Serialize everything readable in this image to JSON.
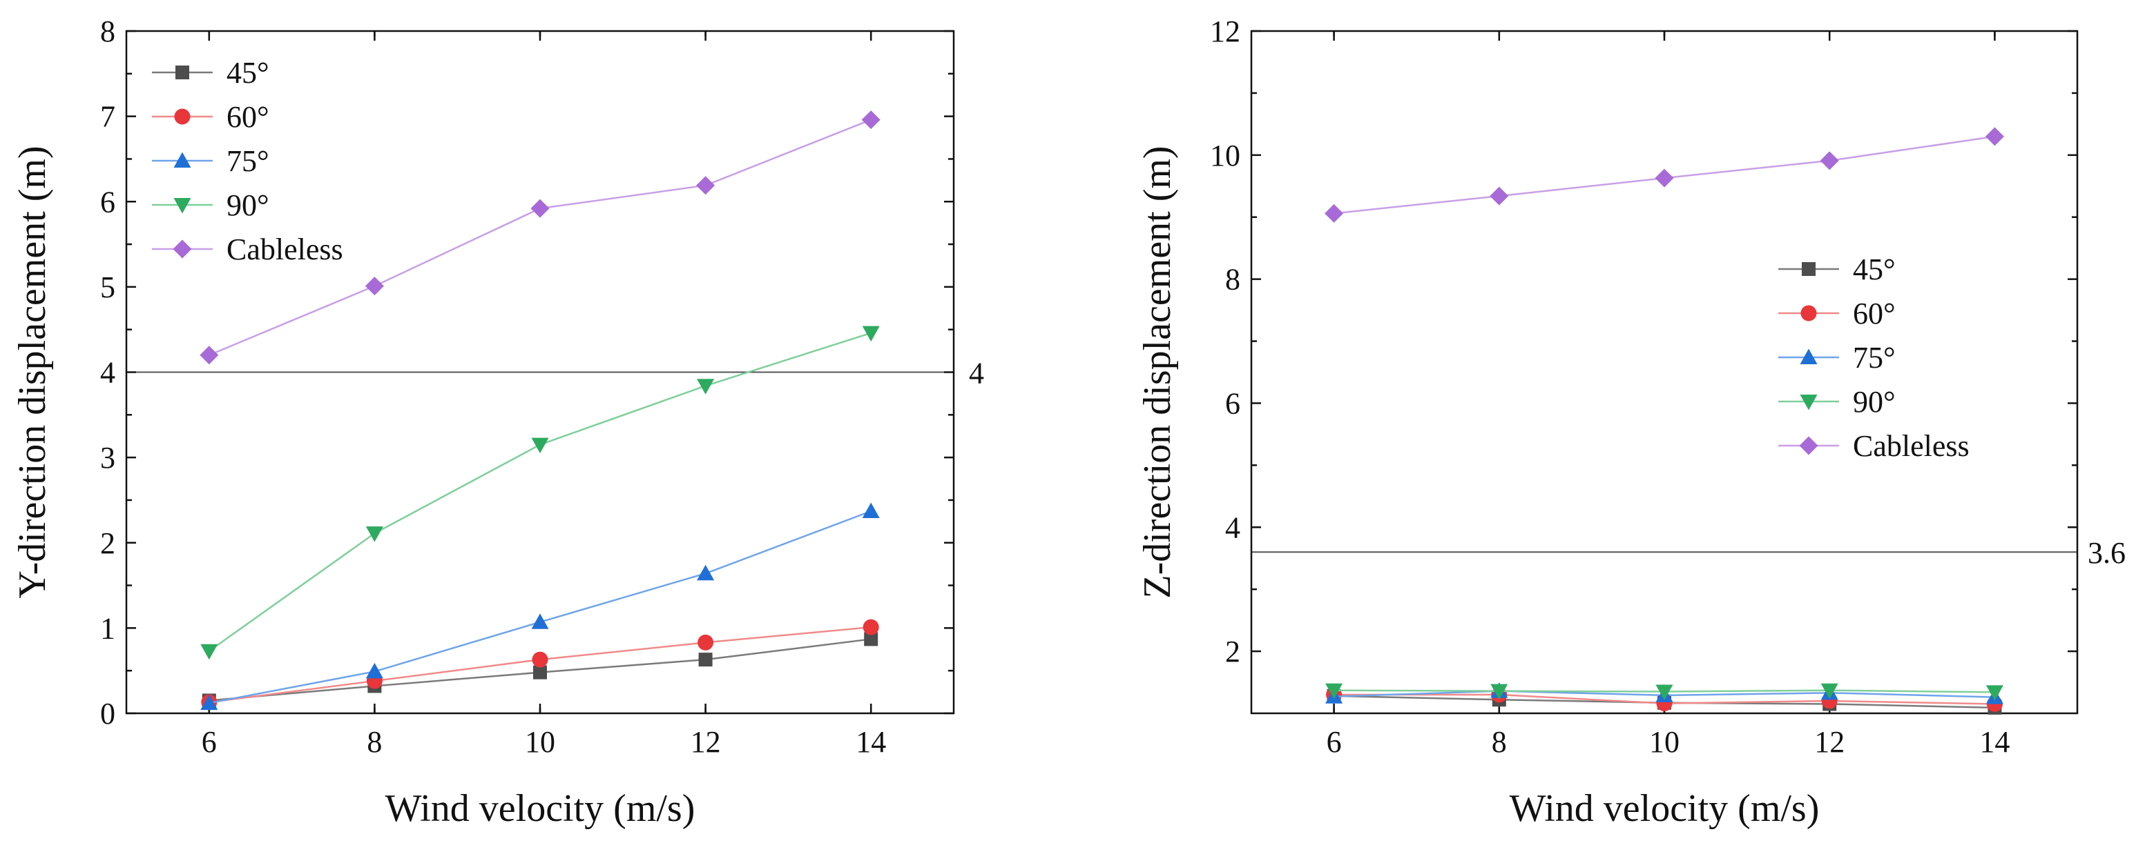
{
  "colors": {
    "45": "#4d4d4d",
    "60": "#e8363a",
    "75": "#1f6fd6",
    "90": "#2eaa5f",
    "cableless": "#a86ad6",
    "line_45": "#7a7a7a",
    "line_60": "#f08a8a",
    "line_75": "#6fa4e8",
    "line_90": "#7fcf9a",
    "line_cableless": "#c7a0e6"
  },
  "chart_data": [
    {
      "type": "line",
      "id": "left",
      "xlabel": "Wind velocity (m/s)",
      "ylabel": "Y-direction displacement (m)",
      "x": [
        6,
        8,
        10,
        12,
        14
      ],
      "xlim": [
        5,
        15
      ],
      "ylim": [
        0,
        8
      ],
      "xticks": [
        6,
        8,
        10,
        12,
        14
      ],
      "yticks": [
        0,
        1,
        2,
        3,
        4,
        5,
        6,
        7,
        8
      ],
      "reference_line": {
        "value": 4,
        "label": "4"
      },
      "legend_position": "top-left",
      "series": [
        {
          "key": "45",
          "name": "45°",
          "marker": "square",
          "values": [
            0.15,
            0.32,
            0.48,
            0.63,
            0.87
          ]
        },
        {
          "key": "60",
          "name": "60°",
          "marker": "circle",
          "values": [
            0.13,
            0.38,
            0.63,
            0.83,
            1.01
          ]
        },
        {
          "key": "75",
          "name": "75°",
          "marker": "triangle-up",
          "values": [
            0.12,
            0.49,
            1.07,
            1.64,
            2.37
          ]
        },
        {
          "key": "90",
          "name": "90°",
          "marker": "triangle-down",
          "values": [
            0.73,
            2.11,
            3.15,
            3.84,
            4.46
          ]
        },
        {
          "key": "cableless",
          "name": "Cableless",
          "marker": "diamond",
          "values": [
            4.2,
            5.01,
            5.92,
            6.19,
            6.96
          ]
        }
      ]
    },
    {
      "type": "line",
      "id": "right",
      "xlabel": "Wind velocity (m/s)",
      "ylabel": "Z-direction displacement (m)",
      "x": [
        6,
        8,
        10,
        12,
        14
      ],
      "xlim": [
        5,
        15
      ],
      "ylim": [
        1,
        12
      ],
      "xticks": [
        6,
        8,
        10,
        12,
        14
      ],
      "yticks": [
        2,
        4,
        6,
        8,
        10,
        12
      ],
      "reference_line": {
        "value": 3.6,
        "label": "3.6"
      },
      "legend_position": "middle-right",
      "series": [
        {
          "key": "45",
          "name": "45°",
          "marker": "square",
          "values": [
            1.28,
            1.22,
            1.17,
            1.15,
            1.09
          ]
        },
        {
          "key": "60",
          "name": "60°",
          "marker": "circle",
          "values": [
            1.3,
            1.3,
            1.16,
            1.2,
            1.15
          ]
        },
        {
          "key": "75",
          "name": "75°",
          "marker": "triangle-up",
          "values": [
            1.27,
            1.36,
            1.29,
            1.33,
            1.26
          ]
        },
        {
          "key": "90",
          "name": "90°",
          "marker": "triangle-down",
          "values": [
            1.37,
            1.36,
            1.35,
            1.37,
            1.34
          ]
        },
        {
          "key": "cableless",
          "name": "Cableless",
          "marker": "diamond",
          "values": [
            9.06,
            9.34,
            9.63,
            9.91,
            10.3
          ]
        }
      ]
    }
  ]
}
